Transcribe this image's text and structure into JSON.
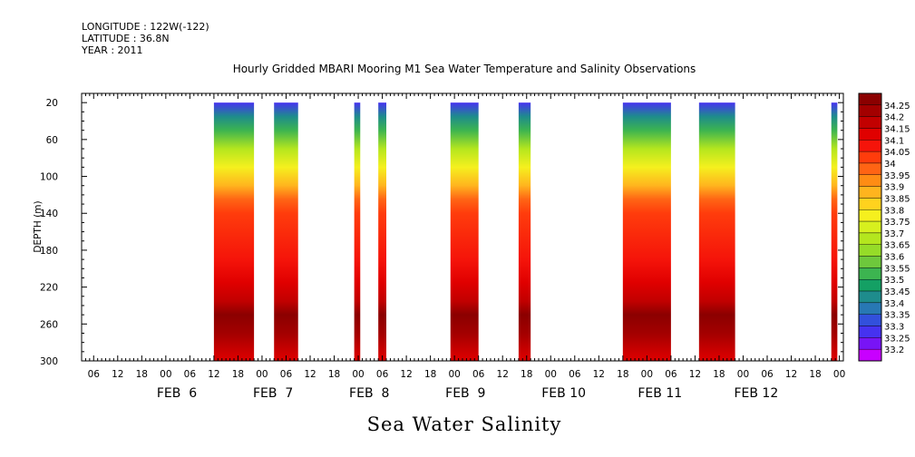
{
  "meta": {
    "longitude": "LONGITUDE : 122W(-122)",
    "latitude": "LATITUDE : 36.8N",
    "year": "YEAR : 2011"
  },
  "chart_data": {
    "type": "heatmap",
    "title": "Hourly Gridded MBARI Mooring M1 Sea Water Temperature and Salinity Observations",
    "xlabel": "Sea Water Salinity",
    "ylabel": "DEPTH (m)",
    "x_range": [
      "2011-02-05T03:00",
      "2011-02-13T01:00"
    ],
    "x_hour_ticks": [
      "06",
      "12",
      "18",
      "00",
      "06",
      "12",
      "18",
      "00",
      "06",
      "12",
      "18",
      "00",
      "06",
      "12",
      "18",
      "00",
      "06",
      "12",
      "18",
      "00",
      "06",
      "12",
      "18",
      "00",
      "06",
      "12",
      "18",
      "00",
      "06",
      "12",
      "18",
      "00"
    ],
    "x_day_labels": [
      "FEB  6",
      "FEB  7",
      "FEB  8",
      "FEB  9",
      "FEB 10",
      "FEB 11",
      "FEB 12"
    ],
    "y_range": [
      300,
      10
    ],
    "y_ticks": [
      20,
      60,
      100,
      140,
      180,
      220,
      260,
      300
    ],
    "colorbar_levels": [
      "34.25",
      "34.2",
      "34.15",
      "34.1",
      "34.05",
      "34",
      "33.95",
      "33.9",
      "33.85",
      "33.8",
      "33.75",
      "33.7",
      "33.65",
      "33.6",
      "33.55",
      "33.5",
      "33.45",
      "33.4",
      "33.35",
      "33.3",
      "33.25",
      "33.2"
    ],
    "colorbar_colors": [
      "#8b0000",
      "#a30000",
      "#c20000",
      "#e00000",
      "#f5140a",
      "#ff3c0c",
      "#ff6414",
      "#ff8c14",
      "#ffb41e",
      "#ffd21e",
      "#f5f01e",
      "#d7f01e",
      "#b4e61e",
      "#96dc28",
      "#6ec83c",
      "#3cb450",
      "#14a064",
      "#1e8c8c",
      "#2878b4",
      "#3250dc",
      "#4632f0",
      "#7814f5",
      "#c800ff"
    ],
    "data_segments": [
      {
        "start": "2011-02-06T12:00",
        "end": "2011-02-06T22:00"
      },
      {
        "start": "2011-02-07T03:00",
        "end": "2011-02-07T09:00"
      },
      {
        "start": "2011-02-07T23:00",
        "end": "2011-02-08T00:30"
      },
      {
        "start": "2011-02-08T05:00",
        "end": "2011-02-08T07:00"
      },
      {
        "start": "2011-02-08T23:00",
        "end": "2011-02-09T06:00"
      },
      {
        "start": "2011-02-09T16:00",
        "end": "2011-02-09T19:00"
      },
      {
        "start": "2011-02-10T18:00",
        "end": "2011-02-11T06:00"
      },
      {
        "start": "2011-02-11T13:00",
        "end": "2011-02-11T22:00"
      },
      {
        "start": "2011-02-12T22:00",
        "end": "2011-02-12T23:30"
      }
    ],
    "salinity_profile": [
      {
        "depth": 20,
        "value": 33.25
      },
      {
        "depth": 35,
        "value": 33.4
      },
      {
        "depth": 50,
        "value": 33.5
      },
      {
        "depth": 70,
        "value": 33.65
      },
      {
        "depth": 90,
        "value": 33.75
      },
      {
        "depth": 110,
        "value": 33.85
      },
      {
        "depth": 125,
        "value": 33.95
      },
      {
        "depth": 140,
        "value": 34.0
      },
      {
        "depth": 190,
        "value": 34.05
      },
      {
        "depth": 215,
        "value": 34.1
      },
      {
        "depth": 235,
        "value": 34.15
      },
      {
        "depth": 250,
        "value": 34.25
      },
      {
        "depth": 270,
        "value": 34.2
      },
      {
        "depth": 285,
        "value": 34.15
      },
      {
        "depth": 300,
        "value": 34.1
      }
    ]
  }
}
